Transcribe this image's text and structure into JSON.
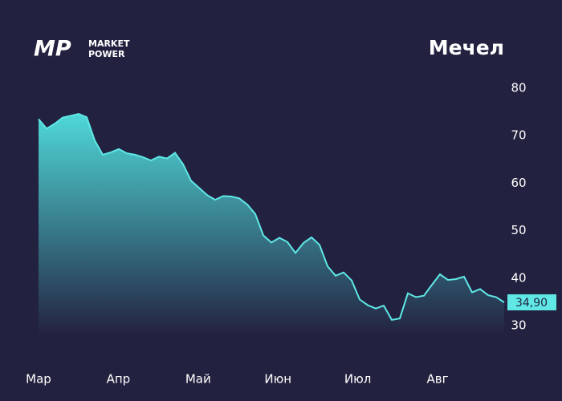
{
  "brand": {
    "logo": "MP",
    "line1": "MARKET",
    "line2": "POWER"
  },
  "chart_data": {
    "type": "area",
    "title": "Мечел",
    "xtick_labels": [
      "Мар",
      "Апр",
      "Май",
      "Июн",
      "Июл",
      "Авг"
    ],
    "values": [
      73.5,
      71.5,
      72.5,
      73.8,
      74.2,
      74.6,
      73.9,
      69,
      66,
      66.5,
      67.2,
      66.3,
      66,
      65.5,
      64.8,
      65.6,
      65.2,
      66.4,
      64,
      60.5,
      59,
      57.5,
      56.5,
      57.3,
      57.2,
      56.8,
      55.5,
      53.5,
      49,
      47.5,
      48.5,
      47.6,
      45.3,
      47.4,
      48.6,
      47,
      42.5,
      40.5,
      41.2,
      39.5,
      35.5,
      34.3,
      33.6,
      34.2,
      31.2,
      31.5,
      36.8,
      36,
      36.3,
      38.6,
      40.8,
      39.6,
      39.8,
      40.3,
      37,
      37.7,
      36.4,
      36,
      34.9
    ],
    "value_labels": [
      null,
      null,
      null,
      null,
      null,
      null,
      null,
      null,
      null,
      null,
      null,
      null,
      null,
      null,
      null,
      null,
      null,
      null,
      null,
      null,
      null,
      null,
      null,
      null,
      null,
      null,
      null,
      null,
      null,
      null,
      null,
      null,
      null,
      null,
      null,
      null,
      null,
      null,
      null,
      null,
      null,
      null,
      null,
      null,
      null,
      null,
      null,
      null,
      null,
      null,
      null,
      null,
      null,
      null,
      null,
      null,
      null,
      null,
      "34,90"
    ],
    "color": "#5fe8e6",
    "ylim": [
      28,
      82
    ],
    "yticks": [
      30,
      40,
      50,
      60,
      70,
      80
    ],
    "grid": false
  }
}
